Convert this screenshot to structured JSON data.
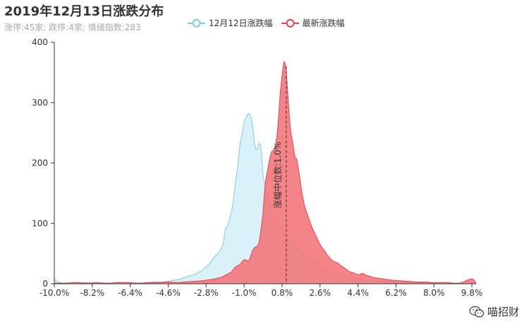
{
  "chart_data": {
    "type": "area",
    "title": "2019年12月13日涨跌分布",
    "subtitle": "涨停:45家; 跌停:4家; 情绪指数:283",
    "ylim": [
      0,
      400
    ],
    "y_ticks": [
      "0",
      "100",
      "200",
      "300",
      "400"
    ],
    "x_tick_labels": [
      "-10.0%",
      "-8.2%",
      "-6.4%",
      "-4.6%",
      "-2.8%",
      "-1.0%",
      "0.8%",
      "2.6%",
      "4.4%",
      "6.2%",
      "8.0%",
      "9.8%"
    ],
    "xlim": [
      -10.0,
      10.0
    ],
    "series": [
      {
        "name": "12月12日涨跌幅",
        "color": "#7ec9e8",
        "fill": "#d5eef9",
        "points": [
          [
            -10.0,
            8
          ],
          [
            -9.8,
            3
          ],
          [
            -9.5,
            1
          ],
          [
            -9.0,
            1
          ],
          [
            -8.6,
            2
          ],
          [
            -8.2,
            1
          ],
          [
            -7.8,
            1
          ],
          [
            -7.2,
            1
          ],
          [
            -6.6,
            2
          ],
          [
            -6.0,
            1
          ],
          [
            -5.6,
            2
          ],
          [
            -5.2,
            3
          ],
          [
            -4.9,
            3
          ],
          [
            -4.6,
            4
          ],
          [
            -4.3,
            6
          ],
          [
            -4.0,
            8
          ],
          [
            -3.7,
            12
          ],
          [
            -3.4,
            15
          ],
          [
            -3.2,
            18
          ],
          [
            -3.0,
            22
          ],
          [
            -2.8,
            28
          ],
          [
            -2.6,
            35
          ],
          [
            -2.4,
            45
          ],
          [
            -2.2,
            52
          ],
          [
            -2.0,
            65
          ],
          [
            -1.9,
            90
          ],
          [
            -1.8,
            95
          ],
          [
            -1.7,
            105
          ],
          [
            -1.6,
            120
          ],
          [
            -1.5,
            140
          ],
          [
            -1.4,
            170
          ],
          [
            -1.3,
            195
          ],
          [
            -1.2,
            230
          ],
          [
            -1.1,
            248
          ],
          [
            -1.0,
            268
          ],
          [
            -0.9,
            275
          ],
          [
            -0.8,
            282
          ],
          [
            -0.7,
            278
          ],
          [
            -0.6,
            262
          ],
          [
            -0.5,
            230
          ],
          [
            -0.4,
            222
          ],
          [
            -0.3,
            232
          ],
          [
            -0.2,
            225
          ],
          [
            -0.1,
            180
          ],
          [
            0.0,
            165
          ],
          [
            0.1,
            150
          ],
          [
            0.2,
            135
          ],
          [
            0.3,
            125
          ],
          [
            0.4,
            115
          ],
          [
            0.5,
            108
          ],
          [
            0.6,
            100
          ],
          [
            0.7,
            95
          ],
          [
            0.8,
            90
          ],
          [
            0.9,
            85
          ],
          [
            1.0,
            80
          ],
          [
            1.2,
            72
          ],
          [
            1.4,
            62
          ],
          [
            1.6,
            55
          ],
          [
            1.8,
            48
          ],
          [
            2.0,
            45
          ],
          [
            2.2,
            40
          ],
          [
            2.4,
            35
          ],
          [
            2.6,
            30
          ],
          [
            2.8,
            26
          ],
          [
            3.0,
            22
          ],
          [
            3.2,
            18
          ],
          [
            3.4,
            16
          ],
          [
            3.6,
            14
          ],
          [
            3.8,
            12
          ],
          [
            4.0,
            10
          ],
          [
            4.4,
            8
          ],
          [
            4.8,
            6
          ],
          [
            5.2,
            5
          ],
          [
            5.6,
            4
          ],
          [
            6.0,
            3
          ],
          [
            6.6,
            3
          ],
          [
            7.2,
            2
          ],
          [
            7.8,
            2
          ],
          [
            8.4,
            1
          ],
          [
            9.0,
            1
          ],
          [
            9.8,
            1
          ],
          [
            10.0,
            0
          ]
        ]
      },
      {
        "name": "最新涨跌幅",
        "color": "#e8434a",
        "fill": "#f27378",
        "points": [
          [
            -10.0,
            1
          ],
          [
            -9.5,
            1
          ],
          [
            -9.0,
            2
          ],
          [
            -8.5,
            1
          ],
          [
            -8.0,
            2
          ],
          [
            -7.5,
            1
          ],
          [
            -7.0,
            2
          ],
          [
            -6.5,
            2
          ],
          [
            -6.0,
            1
          ],
          [
            -5.5,
            2
          ],
          [
            -5.0,
            2
          ],
          [
            -4.6,
            3
          ],
          [
            -4.2,
            2
          ],
          [
            -3.8,
            3
          ],
          [
            -3.4,
            4
          ],
          [
            -3.0,
            5
          ],
          [
            -2.8,
            6
          ],
          [
            -2.6,
            7
          ],
          [
            -2.4,
            8
          ],
          [
            -2.2,
            10
          ],
          [
            -2.0,
            12
          ],
          [
            -1.8,
            16
          ],
          [
            -1.6,
            20
          ],
          [
            -1.4,
            28
          ],
          [
            -1.2,
            32
          ],
          [
            -1.0,
            40
          ],
          [
            -0.8,
            38
          ],
          [
            -0.7,
            45
          ],
          [
            -0.6,
            55
          ],
          [
            -0.5,
            60
          ],
          [
            -0.4,
            62
          ],
          [
            -0.3,
            68
          ],
          [
            -0.2,
            90
          ],
          [
            -0.1,
            120
          ],
          [
            0.0,
            165
          ],
          [
            0.1,
            185
          ],
          [
            0.2,
            205
          ],
          [
            0.3,
            218
          ],
          [
            0.4,
            222
          ],
          [
            0.5,
            232
          ],
          [
            0.6,
            260
          ],
          [
            0.7,
            310
          ],
          [
            0.8,
            345
          ],
          [
            0.9,
            368
          ],
          [
            1.0,
            350
          ],
          [
            1.1,
            300
          ],
          [
            1.2,
            255
          ],
          [
            1.3,
            235
          ],
          [
            1.4,
            212
          ],
          [
            1.5,
            205
          ],
          [
            1.6,
            185
          ],
          [
            1.7,
            160
          ],
          [
            1.8,
            140
          ],
          [
            1.9,
            125
          ],
          [
            2.0,
            115
          ],
          [
            2.2,
            95
          ],
          [
            2.4,
            80
          ],
          [
            2.6,
            65
          ],
          [
            2.8,
            55
          ],
          [
            3.0,
            45
          ],
          [
            3.2,
            38
          ],
          [
            3.4,
            35
          ],
          [
            3.6,
            30
          ],
          [
            3.8,
            25
          ],
          [
            4.0,
            20
          ],
          [
            4.2,
            18
          ],
          [
            4.4,
            15
          ],
          [
            4.6,
            17
          ],
          [
            4.8,
            14
          ],
          [
            5.0,
            12
          ],
          [
            5.2,
            10
          ],
          [
            5.4,
            9
          ],
          [
            5.6,
            8
          ],
          [
            5.8,
            7
          ],
          [
            6.0,
            6
          ],
          [
            6.4,
            5
          ],
          [
            6.8,
            4
          ],
          [
            7.2,
            3
          ],
          [
            7.6,
            3
          ],
          [
            8.0,
            2
          ],
          [
            8.6,
            2
          ],
          [
            9.2,
            1
          ],
          [
            9.8,
            8
          ],
          [
            10.0,
            0
          ]
        ]
      }
    ],
    "markline": {
      "x": 1.0,
      "label": "涨幅中位数:1.0%"
    }
  },
  "watermark": {
    "text": "喵招财",
    "icon": "wechat-icon"
  }
}
